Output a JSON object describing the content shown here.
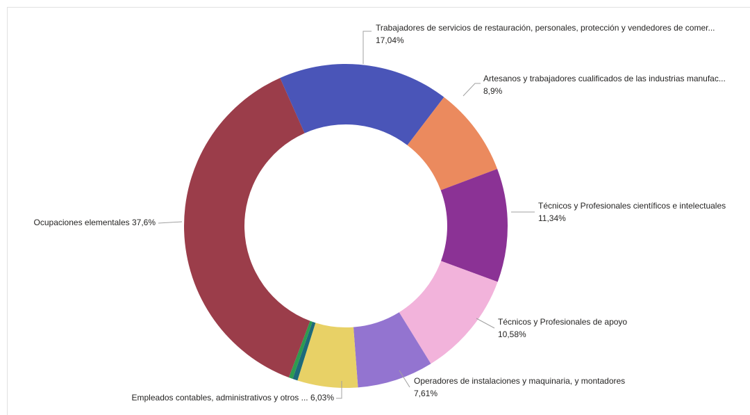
{
  "chart_data": {
    "type": "donut",
    "categories": [
      "Trabajadores de servicios de restauración, personales, protección y vendedores de comer...",
      "Artesanos y trabajadores cualificados de las industrias manufac...",
      "Técnicos y Profesionales científicos e intelectuales",
      "Técnicos y Profesionales de apoyo",
      "Operadores de instalaciones y maquinaria, y montadores",
      "Empleados contables, administrativos y otros ...",
      null,
      null,
      "Ocupaciones elementales"
    ],
    "values": [
      17.04,
      8.9,
      11.34,
      10.58,
      7.61,
      6.03,
      0.5,
      0.4,
      37.6
    ],
    "value_labels": [
      "17,04%",
      "8,9%",
      "11,34%",
      "10,58%",
      "7,61%",
      "6,03%",
      null,
      null,
      "37,6%"
    ],
    "colors": [
      "#4a55b8",
      "#eb8a5e",
      "#8b3295",
      "#f2b3db",
      "#9374d0",
      "#e8d166",
      "#1d6a7a",
      "#2e9b4f",
      "#9b3d4a"
    ]
  }
}
